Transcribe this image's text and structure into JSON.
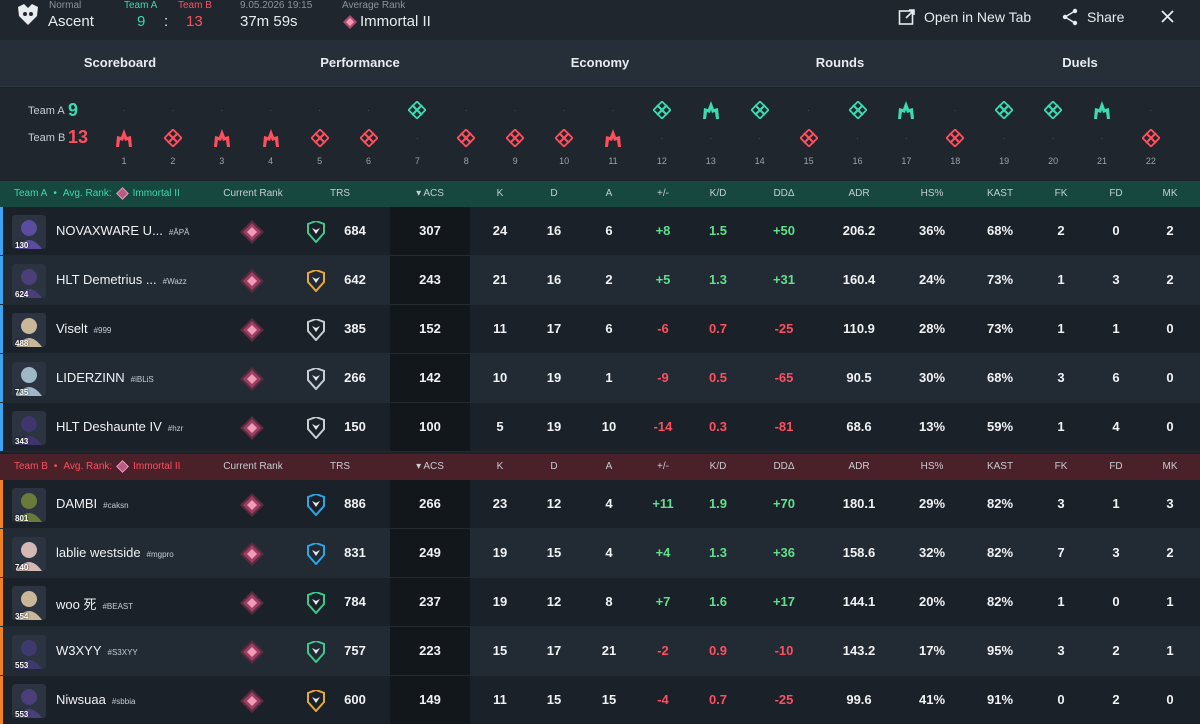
{
  "match": {
    "mode": "Normal",
    "map": "Ascent",
    "team_a_label": "Team A",
    "team_b_label": "Team B",
    "team_a_score": "9",
    "score_sep": ":",
    "team_b_score": "13",
    "date": "9.05.2026 19:15",
    "duration": "37m 59s",
    "avg_rank_label": "Average Rank",
    "avg_rank": "Immortal II"
  },
  "actions": {
    "open_new_tab": "Open in New Tab",
    "share": "Share"
  },
  "tabs": [
    "Scoreboard",
    "Performance",
    "Economy",
    "Rounds",
    "Duels"
  ],
  "active_tab": 0,
  "rounds": {
    "team_a_label": "Team A",
    "team_a_score": "9",
    "team_b_label": "Team B",
    "team_b_score": "13",
    "list": [
      {
        "n": "1",
        "winner": "B",
        "icon": "spike-icon"
      },
      {
        "n": "2",
        "winner": "B",
        "icon": "elimination-icon"
      },
      {
        "n": "3",
        "winner": "B",
        "icon": "spike-icon"
      },
      {
        "n": "4",
        "winner": "B",
        "icon": "spike-icon"
      },
      {
        "n": "5",
        "winner": "B",
        "icon": "elimination-icon"
      },
      {
        "n": "6",
        "winner": "B",
        "icon": "elimination-icon"
      },
      {
        "n": "7",
        "winner": "A",
        "icon": "elimination-icon"
      },
      {
        "n": "8",
        "winner": "B",
        "icon": "elimination-icon"
      },
      {
        "n": "9",
        "winner": "B",
        "icon": "elimination-icon"
      },
      {
        "n": "10",
        "winner": "B",
        "icon": "elimination-icon"
      },
      {
        "n": "11",
        "winner": "B",
        "icon": "spike-icon"
      },
      {
        "n": "12",
        "winner": "A",
        "icon": "elimination-icon"
      },
      {
        "n": "13",
        "winner": "A",
        "icon": "spike-icon"
      },
      {
        "n": "14",
        "winner": "A",
        "icon": "elimination-icon"
      },
      {
        "n": "15",
        "winner": "B",
        "icon": "elimination-icon"
      },
      {
        "n": "16",
        "winner": "A",
        "icon": "elimination-icon"
      },
      {
        "n": "17",
        "winner": "A",
        "icon": "spike-icon"
      },
      {
        "n": "18",
        "winner": "B",
        "icon": "elimination-icon"
      },
      {
        "n": "19",
        "winner": "A",
        "icon": "elimination-icon"
      },
      {
        "n": "20",
        "winner": "A",
        "icon": "elimination-icon"
      },
      {
        "n": "21",
        "winner": "A",
        "icon": "spike-icon"
      },
      {
        "n": "22",
        "winner": "B",
        "icon": "elimination-icon"
      }
    ]
  },
  "columns": {
    "current_rank": "Current Rank",
    "trs": "TRS",
    "acs": "ACS",
    "k": "K",
    "d": "D",
    "a": "A",
    "plus_minus": "+/-",
    "kd": "K/D",
    "dd": "DDΔ",
    "adr": "ADR",
    "hs": "HS%",
    "kast": "KAST",
    "fk": "FK",
    "fd": "FD",
    "mk": "MK"
  },
  "team_a": {
    "label": "Team A",
    "sep": "•",
    "avg_rank_label": "Avg. Rank:",
    "avg_rank": "Immortal II",
    "colors": {
      "header": "#16483f",
      "bar": "#3fa2ef",
      "text": "#3dd9b0"
    },
    "players": [
      {
        "name": "NOVAXWARE U...",
        "tag": "#ÂPÂ",
        "level": "130",
        "agent_color": "#5a4c9e",
        "trs_icon": "green-tier-icon",
        "trs": "684",
        "acs": "307",
        "k": "24",
        "d": "16",
        "a": "6",
        "pm": "+8",
        "kd": "1.5",
        "dd": "+50",
        "adr": "206.2",
        "hs": "36%",
        "kast": "68%",
        "fk": "2",
        "fd": "0",
        "mk": "2"
      },
      {
        "name": "HLT Demetrius ...",
        "tag": "#Wazz",
        "level": "624",
        "agent_color": "#4b3f7a",
        "trs_icon": "gold-tier-icon",
        "trs": "642",
        "acs": "243",
        "k": "21",
        "d": "16",
        "a": "2",
        "pm": "+5",
        "kd": "1.3",
        "dd": "+31",
        "adr": "160.4",
        "hs": "24%",
        "kast": "73%",
        "fk": "1",
        "fd": "3",
        "mk": "2"
      },
      {
        "name": "Viselt",
        "tag": "#999",
        "level": "488",
        "agent_color": "#c9b79a",
        "trs_icon": "silver-tier-icon",
        "trs": "385",
        "acs": "152",
        "k": "11",
        "d": "17",
        "a": "6",
        "pm": "-6",
        "kd": "0.7",
        "dd": "-25",
        "adr": "110.9",
        "hs": "28%",
        "kast": "73%",
        "fk": "1",
        "fd": "1",
        "mk": "0"
      },
      {
        "name": "LIDERZINN",
        "tag": "#iBLiS",
        "level": "735",
        "agent_color": "#9fb8c8",
        "trs_icon": "silver-tier-icon",
        "trs": "266",
        "acs": "142",
        "k": "10",
        "d": "19",
        "a": "1",
        "pm": "-9",
        "kd": "0.5",
        "dd": "-65",
        "adr": "90.5",
        "hs": "30%",
        "kast": "68%",
        "fk": "3",
        "fd": "6",
        "mk": "0"
      },
      {
        "name": "HLT Deshaunte IV",
        "tag": "#hzr",
        "level": "343",
        "agent_color": "#40356c",
        "trs_icon": "silver-tier-icon",
        "trs": "150",
        "acs": "100",
        "k": "5",
        "d": "19",
        "a": "10",
        "pm": "-14",
        "kd": "0.3",
        "dd": "-81",
        "adr": "68.6",
        "hs": "13%",
        "kast": "59%",
        "fk": "1",
        "fd": "4",
        "mk": "0"
      }
    ]
  },
  "team_b": {
    "label": "Team B",
    "sep": "•",
    "avg_rank_label": "Avg. Rank:",
    "avg_rank": "Immortal II",
    "colors": {
      "header": "#4a2029",
      "bar": "#f08024",
      "text": "#ff4f5e"
    },
    "players": [
      {
        "name": "DAMBI",
        "tag": "#caksn",
        "level": "801",
        "agent_color": "#6a7a3a",
        "trs_icon": "blue-tier-icon",
        "trs": "886",
        "acs": "266",
        "k": "23",
        "d": "12",
        "a": "4",
        "pm": "+11",
        "kd": "1.9",
        "dd": "+70",
        "adr": "180.1",
        "hs": "29%",
        "kast": "82%",
        "fk": "3",
        "fd": "1",
        "mk": "3"
      },
      {
        "name": "lablie westside",
        "tag": "#mgpro",
        "level": "740",
        "agent_color": "#d4b8b4",
        "trs_icon": "blue-tier-icon",
        "trs": "831",
        "acs": "249",
        "k": "19",
        "d": "15",
        "a": "4",
        "pm": "+4",
        "kd": "1.3",
        "dd": "+36",
        "adr": "158.6",
        "hs": "32%",
        "kast": "82%",
        "fk": "7",
        "fd": "3",
        "mk": "2"
      },
      {
        "name": "woo 死",
        "tag": "#BEAST",
        "level": "354",
        "agent_color": "#c9b79a",
        "trs_icon": "green-tier-icon",
        "trs": "784",
        "acs": "237",
        "k": "19",
        "d": "12",
        "a": "8",
        "pm": "+7",
        "kd": "1.6",
        "dd": "+17",
        "adr": "144.1",
        "hs": "20%",
        "kast": "82%",
        "fk": "1",
        "fd": "0",
        "mk": "1"
      },
      {
        "name": "W3XYY",
        "tag": "#S3XYY",
        "level": "553",
        "agent_color": "#3e3a6e",
        "trs_icon": "green-tier-icon",
        "trs": "757",
        "acs": "223",
        "k": "15",
        "d": "17",
        "a": "21",
        "pm": "-2",
        "kd": "0.9",
        "dd": "-10",
        "adr": "143.2",
        "hs": "17%",
        "kast": "95%",
        "fk": "3",
        "fd": "2",
        "mk": "1"
      },
      {
        "name": "Niwsuaa",
        "tag": "#sbbia",
        "level": "553",
        "agent_color": "#4b3f7a",
        "trs_icon": "gold-tier-icon",
        "trs": "600",
        "acs": "149",
        "k": "11",
        "d": "15",
        "a": "15",
        "pm": "-4",
        "kd": "0.7",
        "dd": "-25",
        "adr": "99.6",
        "hs": "41%",
        "kast": "91%",
        "fk": "0",
        "fd": "2",
        "mk": "0"
      }
    ]
  }
}
